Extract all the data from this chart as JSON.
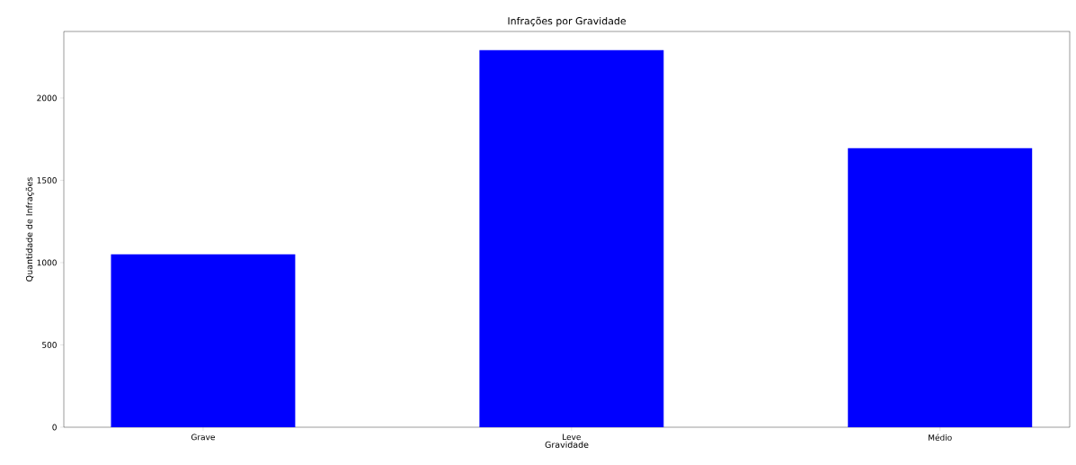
{
  "chart_data": {
    "type": "bar",
    "title": "Infrações por Gravidade",
    "xlabel": "Gravidade",
    "ylabel": "Quantidade de Infrações",
    "categories": [
      "Grave",
      "Leve",
      "Médio"
    ],
    "values": [
      1050,
      2290,
      1695
    ],
    "color": "#0000ff",
    "ylim": [
      0,
      2404
    ],
    "yticks": [
      0,
      500,
      1000,
      1500,
      2000
    ],
    "grid": false
  }
}
